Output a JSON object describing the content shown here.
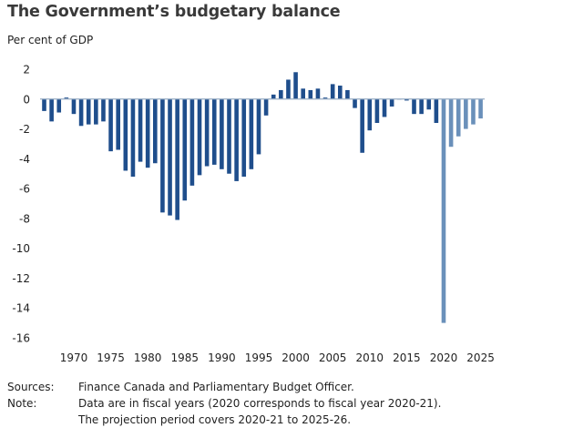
{
  "chart_data": {
    "type": "bar",
    "title": "The Government’s budgetary balance",
    "ylabel": "Per cent of GDP",
    "xlabel": "",
    "ylim": [
      -16,
      2
    ],
    "y_ticks": [
      2,
      0,
      -2,
      -4,
      -6,
      -8,
      -10,
      -12,
      -14,
      -16
    ],
    "x_ticks": [
      1970,
      1975,
      1980,
      1985,
      1990,
      1995,
      2000,
      2005,
      2010,
      2015,
      2020,
      2025
    ],
    "grid": false,
    "legend": "none",
    "colors": {
      "actual": "#1f4e8c",
      "projection": "#6a90ba",
      "zero_line": "#9aaec4"
    },
    "projection_start": 2020,
    "x": [
      1966,
      1967,
      1968,
      1969,
      1970,
      1971,
      1972,
      1973,
      1974,
      1975,
      1976,
      1977,
      1978,
      1979,
      1980,
      1981,
      1982,
      1983,
      1984,
      1985,
      1986,
      1987,
      1988,
      1989,
      1990,
      1991,
      1992,
      1993,
      1994,
      1995,
      1996,
      1997,
      1998,
      1999,
      2000,
      2001,
      2002,
      2003,
      2004,
      2005,
      2006,
      2007,
      2008,
      2009,
      2010,
      2011,
      2012,
      2013,
      2014,
      2015,
      2016,
      2017,
      2018,
      2019,
      2020,
      2021,
      2022,
      2023,
      2024,
      2025
    ],
    "values": [
      -0.8,
      -1.5,
      -0.9,
      0.1,
      -1.0,
      -1.8,
      -1.7,
      -1.7,
      -1.5,
      -3.5,
      -3.4,
      -4.8,
      -5.2,
      -4.2,
      -4.6,
      -4.3,
      -7.6,
      -7.8,
      -8.1,
      -6.8,
      -5.8,
      -5.1,
      -4.5,
      -4.4,
      -4.7,
      -5.0,
      -5.5,
      -5.2,
      -4.7,
      -3.7,
      -1.1,
      0.3,
      0.6,
      1.3,
      1.8,
      0.7,
      0.6,
      0.7,
      0.1,
      1.0,
      0.9,
      0.6,
      -0.6,
      -3.6,
      -2.1,
      -1.6,
      -1.2,
      -0.5,
      0.0,
      -0.1,
      -1.0,
      -1.0,
      -0.7,
      -1.6,
      -15.0,
      -3.2,
      -2.5,
      -2.0,
      -1.7,
      -1.3
    ]
  },
  "footer": {
    "sources_label": "Sources:",
    "sources_text": "Finance Canada and Parliamentary Budget Officer.",
    "note_label": "Note:",
    "note_line1": "Data are in fiscal years (2020 corresponds to fiscal year 2020-21).",
    "note_line2": "The projection period covers 2020-21 to 2025-26."
  }
}
